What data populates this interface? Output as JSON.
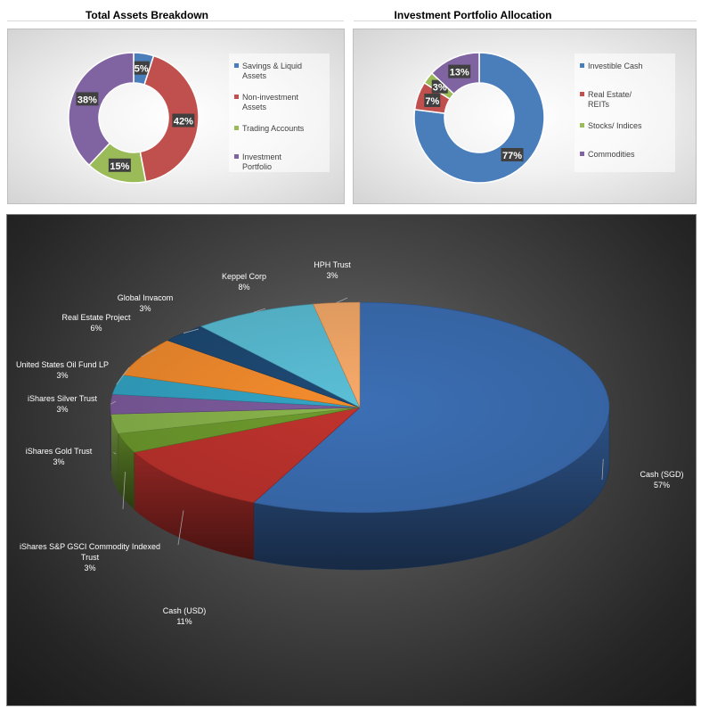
{
  "chart_data": [
    {
      "type": "donut",
      "title": "Total Assets Breakdown",
      "categories": [
        "Savings & Liquid Assets",
        "Non-investment Assets",
        "Trading Accounts",
        "Investment Portfolio"
      ],
      "values": [
        5,
        42,
        15,
        38
      ],
      "labels": [
        "5%",
        "42%",
        "15%",
        "38%"
      ],
      "colors": [
        "#4a7ebb",
        "#c0504d",
        "#9bbb59",
        "#8064a2"
      ],
      "legend_position": "right"
    },
    {
      "type": "donut",
      "title": "Investment Portfolio Allocation",
      "categories": [
        "Investible Cash",
        "Real Estate/ REITs",
        "Stocks/ Indices",
        "Commodities"
      ],
      "values": [
        77,
        7,
        3,
        13
      ],
      "labels": [
        "77%",
        "7%",
        "3%",
        "13%"
      ],
      "colors": [
        "#4a7ebb",
        "#c0504d",
        "#9bbb59",
        "#8064a2"
      ],
      "legend_position": "right"
    },
    {
      "type": "pie",
      "style": "3d",
      "categories": [
        "Cash (SGD)",
        "Cash (USD)",
        "iShares S&P GSCI Commodity Indexed Trust",
        "iShares Gold Trust",
        "iShares Silver Trust",
        "United States Oil Fund LP",
        "Real Estate Project",
        "Global Invacom",
        "Keppel Corp",
        "HPH Trust"
      ],
      "values": [
        57,
        11,
        3,
        3,
        3,
        3,
        6,
        3,
        8,
        3
      ],
      "labels": [
        "57%",
        "11%",
        "3%",
        "3%",
        "3%",
        "3%",
        "6%",
        "3%",
        "8%",
        "3%"
      ],
      "colors": [
        "#3c6fb5",
        "#c0332e",
        "#6e9c2e",
        "#8ab54c",
        "#7e5b9e",
        "#33a6c6",
        "#f68d2e",
        "#1e4a75",
        "#5bc0d8",
        "#f8ab6a",
        "#2e7c96"
      ]
    }
  ]
}
